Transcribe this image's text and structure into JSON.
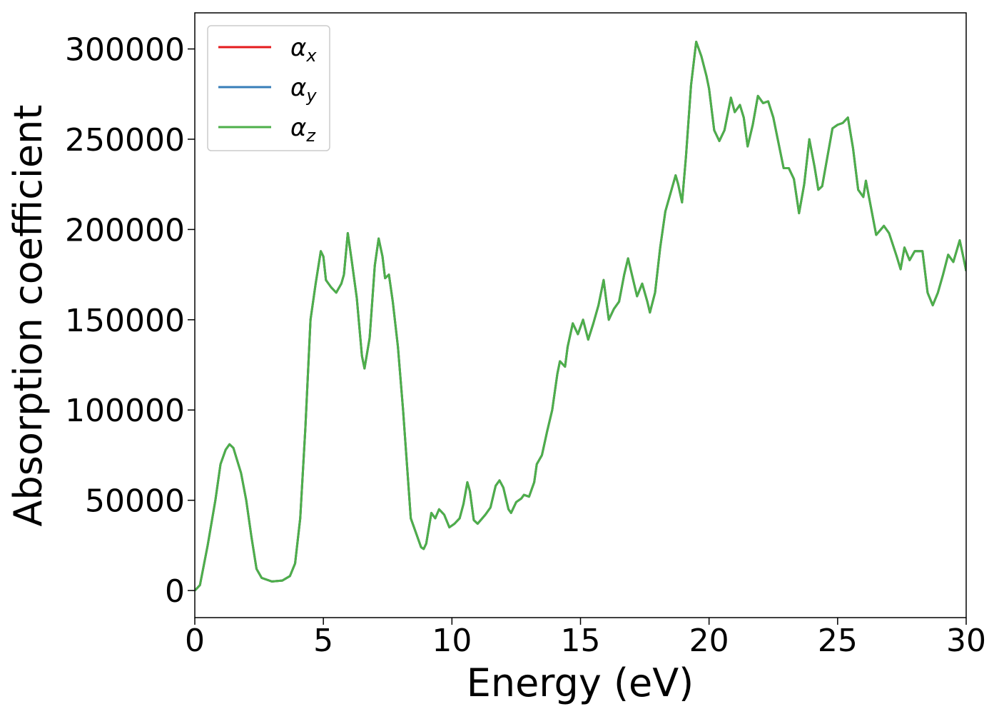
{
  "chart_data": {
    "type": "line",
    "xlabel": "Energy (eV)",
    "ylabel": "Absorption coefficient",
    "xlim": [
      0,
      30
    ],
    "xticks": [
      0,
      5,
      10,
      15,
      20,
      25,
      30
    ],
    "ylim": [
      -15000,
      320000
    ],
    "yticks": [
      0,
      50000,
      100000,
      150000,
      200000,
      250000,
      300000
    ],
    "grid": false,
    "legend": "upper left",
    "x": [
      0,
      0.2,
      0.5,
      0.8,
      1.0,
      1.2,
      1.35,
      1.5,
      1.8,
      2.0,
      2.2,
      2.4,
      2.6,
      3.0,
      3.4,
      3.7,
      3.9,
      4.1,
      4.3,
      4.5,
      4.7,
      4.9,
      5.0,
      5.1,
      5.3,
      5.5,
      5.7,
      5.8,
      5.95,
      6.1,
      6.3,
      6.5,
      6.6,
      6.8,
      7.0,
      7.15,
      7.3,
      7.4,
      7.55,
      7.7,
      7.9,
      8.1,
      8.3,
      8.4,
      8.6,
      8.8,
      8.9,
      9.0,
      9.2,
      9.35,
      9.5,
      9.7,
      9.9,
      10.1,
      10.3,
      10.45,
      10.6,
      10.7,
      10.85,
      11.0,
      11.3,
      11.5,
      11.7,
      11.85,
      12.0,
      12.2,
      12.3,
      12.5,
      12.7,
      12.8,
      13.0,
      13.2,
      13.3,
      13.5,
      13.7,
      13.9,
      14.1,
      14.2,
      14.4,
      14.5,
      14.7,
      14.9,
      15.1,
      15.3,
      15.5,
      15.7,
      15.9,
      16.1,
      16.3,
      16.5,
      16.7,
      16.85,
      17.0,
      17.2,
      17.4,
      17.6,
      17.7,
      17.9,
      18.1,
      18.3,
      18.5,
      18.7,
      18.8,
      18.95,
      19.1,
      19.3,
      19.5,
      19.7,
      19.9,
      20.0,
      20.2,
      20.4,
      20.6,
      20.85,
      21.0,
      21.2,
      21.35,
      21.5,
      21.7,
      21.9,
      22.1,
      22.3,
      22.5,
      22.7,
      22.9,
      23.1,
      23.3,
      23.5,
      23.7,
      23.9,
      24.1,
      24.25,
      24.4,
      24.6,
      24.8,
      25.0,
      25.2,
      25.4,
      25.6,
      25.8,
      26.0,
      26.1,
      26.3,
      26.5,
      26.8,
      27.0,
      27.3,
      27.45,
      27.6,
      27.8,
      28.0,
      28.3,
      28.5,
      28.7,
      28.9,
      29.1,
      29.3,
      29.5,
      29.75,
      29.9,
      30.0
    ],
    "series": [
      {
        "name": "αx",
        "color": "#e41a1c",
        "values": [
          0,
          3000,
          25000,
          50000,
          70000,
          78000,
          81000,
          79000,
          65000,
          50000,
          30000,
          12000,
          7000,
          5000,
          5500,
          8000,
          15000,
          40000,
          90000,
          150000,
          170000,
          188000,
          185000,
          172000,
          168000,
          165000,
          170000,
          175000,
          198000,
          183000,
          162000,
          130000,
          123000,
          140000,
          180000,
          195000,
          185000,
          173000,
          175000,
          160000,
          135000,
          100000,
          60000,
          40000,
          32000,
          24000,
          23000,
          26000,
          43000,
          40000,
          45000,
          42000,
          35000,
          37000,
          40000,
          48000,
          60000,
          55000,
          39000,
          37000,
          42000,
          46000,
          58000,
          61000,
          57000,
          45000,
          43000,
          49000,
          51000,
          53000,
          52000,
          60000,
          70000,
          75000,
          88000,
          100000,
          120000,
          127000,
          124000,
          135000,
          148000,
          142000,
          150000,
          139000,
          148000,
          158000,
          172000,
          150000,
          156000,
          160000,
          175000,
          184000,
          175000,
          163000,
          170000,
          160000,
          154000,
          165000,
          190000,
          210000,
          220000,
          230000,
          225000,
          215000,
          240000,
          280000,
          304000,
          296000,
          285000,
          278000,
          255000,
          249000,
          255000,
          273000,
          265000,
          269000,
          262000,
          246000,
          258000,
          274000,
          270000,
          271000,
          262000,
          248000,
          234000,
          234000,
          228000,
          209000,
          225000,
          250000,
          235000,
          222000,
          224000,
          240000,
          256000,
          258000,
          259000,
          262000,
          245000,
          222000,
          218000,
          227000,
          212000,
          197000,
          202000,
          198000,
          185000,
          178000,
          190000,
          183000,
          188000,
          188000,
          165000,
          158000,
          165000,
          175000,
          186000,
          182000,
          194000,
          184000,
          177000
        ]
      },
      {
        "name": "αy",
        "color": "#377eb8",
        "values": [
          0,
          3000,
          25000,
          50000,
          70000,
          78000,
          81000,
          79000,
          65000,
          50000,
          30000,
          12000,
          7000,
          5000,
          5500,
          8000,
          15000,
          40000,
          90000,
          150000,
          170000,
          188000,
          185000,
          172000,
          168000,
          165000,
          170000,
          175000,
          198000,
          183000,
          162000,
          130000,
          123000,
          140000,
          180000,
          195000,
          185000,
          173000,
          175000,
          160000,
          135000,
          100000,
          60000,
          40000,
          32000,
          24000,
          23000,
          26000,
          43000,
          40000,
          45000,
          42000,
          35000,
          37000,
          40000,
          48000,
          60000,
          55000,
          39000,
          37000,
          42000,
          46000,
          58000,
          61000,
          57000,
          45000,
          43000,
          49000,
          51000,
          53000,
          52000,
          60000,
          70000,
          75000,
          88000,
          100000,
          120000,
          127000,
          124000,
          135000,
          148000,
          142000,
          150000,
          139000,
          148000,
          158000,
          172000,
          150000,
          156000,
          160000,
          175000,
          184000,
          175000,
          163000,
          170000,
          160000,
          154000,
          165000,
          190000,
          210000,
          220000,
          230000,
          225000,
          215000,
          240000,
          280000,
          304000,
          296000,
          285000,
          278000,
          255000,
          249000,
          255000,
          273000,
          265000,
          269000,
          262000,
          246000,
          258000,
          274000,
          270000,
          271000,
          262000,
          248000,
          234000,
          234000,
          228000,
          209000,
          225000,
          250000,
          235000,
          222000,
          224000,
          240000,
          256000,
          258000,
          259000,
          262000,
          245000,
          222000,
          218000,
          227000,
          212000,
          197000,
          202000,
          198000,
          185000,
          178000,
          190000,
          183000,
          188000,
          188000,
          165000,
          158000,
          165000,
          175000,
          186000,
          182000,
          194000,
          184000,
          177000
        ]
      },
      {
        "name": "αz",
        "color": "#4daf4a",
        "values": [
          0,
          3000,
          25000,
          50000,
          70000,
          78000,
          81000,
          79000,
          65000,
          50000,
          30000,
          12000,
          7000,
          5000,
          5500,
          8000,
          15000,
          40000,
          90000,
          150000,
          170000,
          188000,
          185000,
          172000,
          168000,
          165000,
          170000,
          175000,
          198000,
          183000,
          162000,
          130000,
          123000,
          140000,
          180000,
          195000,
          185000,
          173000,
          175000,
          160000,
          135000,
          100000,
          60000,
          40000,
          32000,
          24000,
          23000,
          26000,
          43000,
          40000,
          45000,
          42000,
          35000,
          37000,
          40000,
          48000,
          60000,
          55000,
          39000,
          37000,
          42000,
          46000,
          58000,
          61000,
          57000,
          45000,
          43000,
          49000,
          51000,
          53000,
          52000,
          60000,
          70000,
          75000,
          88000,
          100000,
          120000,
          127000,
          124000,
          135000,
          148000,
          142000,
          150000,
          139000,
          148000,
          158000,
          172000,
          150000,
          156000,
          160000,
          175000,
          184000,
          175000,
          163000,
          170000,
          160000,
          154000,
          165000,
          190000,
          210000,
          220000,
          230000,
          225000,
          215000,
          240000,
          280000,
          304000,
          296000,
          285000,
          278000,
          255000,
          249000,
          255000,
          273000,
          265000,
          269000,
          262000,
          246000,
          258000,
          274000,
          270000,
          271000,
          262000,
          248000,
          234000,
          234000,
          228000,
          209000,
          225000,
          250000,
          235000,
          222000,
          224000,
          240000,
          256000,
          258000,
          259000,
          262000,
          245000,
          222000,
          218000,
          227000,
          212000,
          197000,
          202000,
          198000,
          185000,
          178000,
          190000,
          183000,
          188000,
          188000,
          165000,
          158000,
          165000,
          175000,
          186000,
          182000,
          194000,
          184000,
          177000
        ]
      }
    ]
  }
}
